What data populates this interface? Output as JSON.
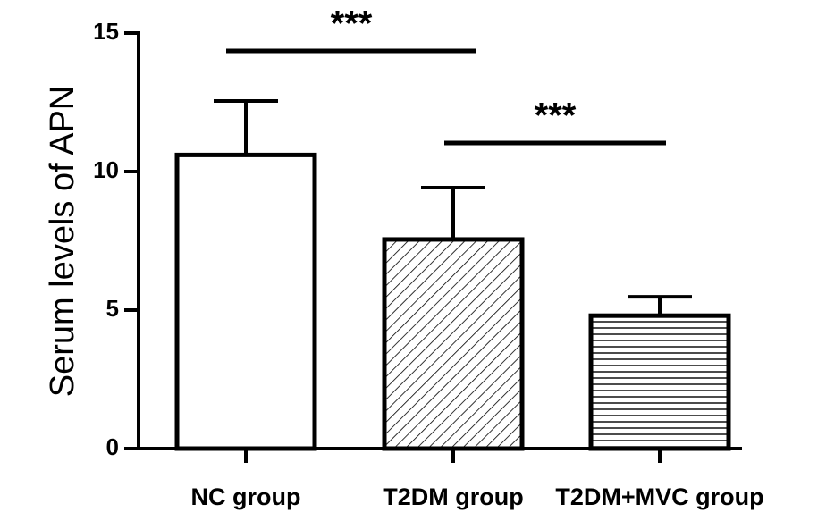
{
  "chart_data": {
    "type": "bar",
    "ylabel": "Serum levels of APN",
    "categories": [
      "NC group",
      "T2DM group",
      "T2DM+MVC group"
    ],
    "values": [
      10.6,
      7.55,
      4.8
    ],
    "errors": [
      1.95,
      1.87,
      0.68
    ],
    "patterns": [
      "none",
      "diagonal",
      "horizontal"
    ],
    "color": "#000000",
    "ylim": [
      0,
      15
    ],
    "yticks": [
      0,
      5,
      10,
      15
    ],
    "annotations": [
      {
        "text": "***"
      },
      {
        "text": "***"
      }
    ]
  }
}
